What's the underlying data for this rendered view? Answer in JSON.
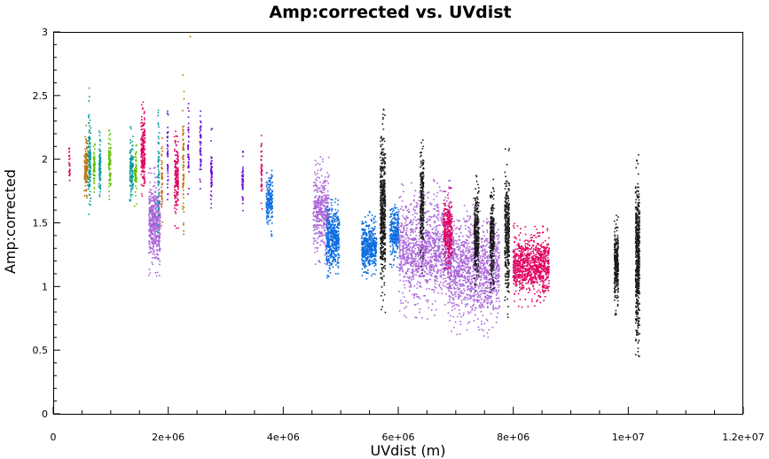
{
  "chart_data": {
    "type": "scatter",
    "title": "Amp:corrected vs. UVdist",
    "xlabel": "UVdist (m)",
    "ylabel": "Amp:corrected",
    "xlim": [
      0,
      12000000
    ],
    "ylim": [
      0,
      3
    ],
    "x_ticks": [
      {
        "value": 0,
        "label": "0"
      },
      {
        "value": 2000000,
        "label": "2e+06"
      },
      {
        "value": 4000000,
        "label": "4e+06"
      },
      {
        "value": 6000000,
        "label": "6e+06"
      },
      {
        "value": 8000000,
        "label": "8e+06"
      },
      {
        "value": 10000000,
        "label": "1e+07"
      },
      {
        "value": 12000000,
        "label": "1.2e+07"
      }
    ],
    "y_ticks": [
      {
        "value": 0,
        "label": "0"
      },
      {
        "value": 0.5,
        "label": "0.5"
      },
      {
        "value": 1,
        "label": "1"
      },
      {
        "value": 1.5,
        "label": "1.5"
      },
      {
        "value": 2,
        "label": "2"
      },
      {
        "value": 2.5,
        "label": "2.5"
      },
      {
        "value": 3,
        "label": "3"
      }
    ],
    "grid": false,
    "colors": {
      "magenta": "#e0005e",
      "orange": "#b87000",
      "teal": "#009a9a",
      "green": "#60c000",
      "purple": "#6a00d8",
      "lavender": "#a864d8",
      "blue": "#0a6ce0",
      "black": "#1a1a1a"
    },
    "clusters": [
      {
        "color": "magenta",
        "x": 270000,
        "y": [
          1.67,
          2.21
        ],
        "w": 18000,
        "n": 25
      },
      {
        "color": "orange",
        "x": 560000,
        "y": [
          1.62,
          2.28
        ],
        "w": 60000,
        "n": 120
      },
      {
        "color": "teal",
        "x": 620000,
        "y": [
          1.48,
          2.58
        ],
        "w": 40000,
        "n": 120
      },
      {
        "color": "green",
        "x": 700000,
        "y": [
          1.7,
          2.2
        ],
        "w": 30000,
        "n": 60
      },
      {
        "color": "teal",
        "x": 800000,
        "y": [
          1.6,
          2.3
        ],
        "w": 30000,
        "n": 80
      },
      {
        "color": "green",
        "x": 970000,
        "y": [
          1.62,
          2.3
        ],
        "w": 40000,
        "n": 80
      },
      {
        "color": "teal",
        "x": 1350000,
        "y": [
          1.6,
          2.27
        ],
        "w": 60000,
        "n": 120
      },
      {
        "color": "green",
        "x": 1420000,
        "y": [
          1.6,
          2.2
        ],
        "w": 40000,
        "n": 60
      },
      {
        "color": "magenta",
        "x": 1550000,
        "y": [
          1.62,
          2.52
        ],
        "w": 70000,
        "n": 180
      },
      {
        "color": "lavender",
        "x": 1750000,
        "y": [
          1.08,
          1.95
        ],
        "w": 200000,
        "n": 500
      },
      {
        "color": "teal",
        "x": 1820000,
        "y": [
          1.3,
          2.6
        ],
        "w": 25000,
        "n": 60
      },
      {
        "color": "orange",
        "x": 1880000,
        "y": [
          1.35,
          2.3
        ],
        "w": 20000,
        "n": 50
      },
      {
        "color": "purple",
        "x": 1980000,
        "y": [
          1.65,
          2.44
        ],
        "w": 20000,
        "n": 40
      },
      {
        "color": "magenta",
        "x": 2130000,
        "y": [
          1.45,
          2.28
        ],
        "w": 70000,
        "n": 160
      },
      {
        "color": "orange",
        "x": 2250000,
        "y": [
          1.18,
          2.67
        ],
        "w": 25000,
        "n": 70
      },
      {
        "color": "purple",
        "x": 2340000,
        "y": [
          1.68,
          2.45
        ],
        "w": 20000,
        "n": 40
      },
      {
        "color": "orange",
        "x": 2370000,
        "y": [
          2.96,
          2.99
        ],
        "w": 6000,
        "n": 1
      },
      {
        "color": "purple",
        "x": 2550000,
        "y": [
          1.6,
          2.52
        ],
        "w": 25000,
        "n": 50
      },
      {
        "color": "purple",
        "x": 2740000,
        "y": [
          1.55,
          2.25
        ],
        "w": 25000,
        "n": 50
      },
      {
        "color": "purple",
        "x": 3280000,
        "y": [
          1.6,
          2.1
        ],
        "w": 25000,
        "n": 40
      },
      {
        "color": "magenta",
        "x": 3610000,
        "y": [
          1.6,
          2.25
        ],
        "w": 22000,
        "n": 40
      },
      {
        "color": "blue",
        "x": 3750000,
        "y": [
          1.4,
          1.97
        ],
        "w": 110000,
        "n": 180
      },
      {
        "color": "lavender",
        "x": 4650000,
        "y": [
          1.15,
          2.03
        ],
        "w": 280000,
        "n": 400
      },
      {
        "color": "blue",
        "x": 4850000,
        "y": [
          1.05,
          1.72
        ],
        "w": 230000,
        "n": 450
      },
      {
        "color": "blue",
        "x": 5480000,
        "y": [
          1.05,
          1.6
        ],
        "w": 260000,
        "n": 450
      },
      {
        "color": "black",
        "x": 5720000,
        "y": [
          0.8,
          2.4
        ],
        "w": 90000,
        "n": 500
      },
      {
        "color": "blue",
        "x": 5920000,
        "y": [
          1.15,
          1.72
        ],
        "w": 160000,
        "n": 250
      },
      {
        "color": "lavender",
        "x": 6450000,
        "y": [
          0.75,
          1.85
        ],
        "w": 900000,
        "n": 1200
      },
      {
        "color": "lavender",
        "x": 7300000,
        "y": [
          0.6,
          1.7
        ],
        "w": 900000,
        "n": 1200
      },
      {
        "color": "black",
        "x": 6400000,
        "y": [
          1.1,
          2.23
        ],
        "w": 60000,
        "n": 250
      },
      {
        "color": "magenta",
        "x": 6850000,
        "y": [
          1.05,
          1.82
        ],
        "w": 150000,
        "n": 280
      },
      {
        "color": "black",
        "x": 7350000,
        "y": [
          0.95,
          1.9
        ],
        "w": 80000,
        "n": 300
      },
      {
        "color": "black",
        "x": 7620000,
        "y": [
          0.9,
          1.85
        ],
        "w": 70000,
        "n": 280
      },
      {
        "color": "black",
        "x": 7880000,
        "y": [
          0.75,
          2.1
        ],
        "w": 80000,
        "n": 350
      },
      {
        "color": "magenta",
        "x": 8300000,
        "y": [
          0.84,
          1.5
        ],
        "w": 630000,
        "n": 900
      },
      {
        "color": "black",
        "x": 9780000,
        "y": [
          0.78,
          1.57
        ],
        "w": 70000,
        "n": 300
      },
      {
        "color": "black",
        "x": 10150000,
        "y": [
          0.38,
          2.07
        ],
        "w": 70000,
        "n": 500
      }
    ]
  }
}
